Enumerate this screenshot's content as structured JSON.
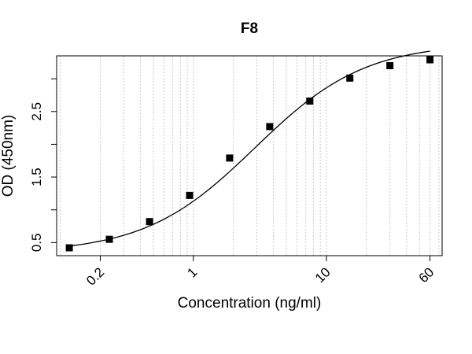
{
  "chart_data": {
    "type": "scatter",
    "title": "F8",
    "xlabel": "Concentration (ng/ml)",
    "ylabel": "OD (450nm)",
    "x_scale": "log",
    "x_range": [
      0.094,
      74
    ],
    "y_range": [
      0.3,
      3.35
    ],
    "x_tick_labels": [
      "0.2",
      "1",
      "10",
      "60"
    ],
    "x_tick_values": [
      0.2,
      1,
      10,
      60
    ],
    "y_tick_labels": [
      "0.5",
      "1.5",
      "2.5"
    ],
    "y_tick_values": [
      0.5,
      1.5,
      2.5
    ],
    "y_minor_ticks": [
      1.0,
      2.0,
      3.0
    ],
    "grid": "vertical dotted minor log gridlines",
    "series": [
      {
        "marker": "square",
        "fit": "4PL",
        "x": [
          0.117,
          0.234,
          0.469,
          0.938,
          1.875,
          3.75,
          7.5,
          15,
          30,
          60
        ],
        "y": [
          0.42,
          0.55,
          0.82,
          1.22,
          1.79,
          2.27,
          2.66,
          3.01,
          3.2,
          3.29
        ]
      }
    ],
    "fit_curve": {
      "A": 0.34,
      "D": 3.55,
      "C": 2.9,
      "B": 1.05
    },
    "colors": {
      "marker": "#000000",
      "line": "#000000",
      "grid": "#c8c8c8"
    }
  }
}
